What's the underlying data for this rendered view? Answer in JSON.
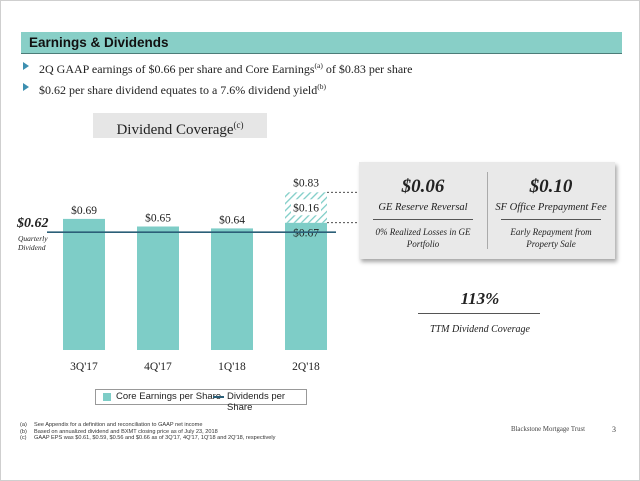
{
  "header": {
    "title": "Earnings & Dividends"
  },
  "bullets": [
    {
      "pre": "2Q GAAP earnings of $0.66 per share and Core Earnings",
      "sup": "(a)",
      "post": " of $0.83 per share"
    },
    {
      "pre": "$0.62 per share dividend equates to a 7.6% dividend yield",
      "sup": "(b)",
      "post": ""
    }
  ],
  "chart_title": {
    "text": "Dividend Coverage",
    "sup": "(c)"
  },
  "chart_data": {
    "type": "bar",
    "categories": [
      "3Q'17",
      "4Q'17",
      "1Q'18",
      "2Q'18"
    ],
    "series": [
      {
        "name": "Core Earnings per Share",
        "values": [
          0.69,
          0.65,
          0.64,
          0.67
        ],
        "labels": [
          "$0.69",
          "$0.65",
          "$0.64",
          "$0.67"
        ],
        "color": "#7ecdc7"
      }
    ],
    "stacked_addition": {
      "category": "2Q'18",
      "value": 0.16,
      "label": "$0.16",
      "total_label": "$0.83",
      "pattern": "diagonal-hatch",
      "color": "#7ecdc7"
    },
    "reference_line": {
      "name": "Dividends per Share",
      "value": 0.62,
      "label": "$0.62",
      "sublabel_line1": "Quarterly",
      "sublabel_line2": "Dividend",
      "color": "#2b5f78"
    },
    "legend": [
      "Core Earnings per Share",
      "Dividends per Share"
    ],
    "legend_position": "bottom-left",
    "grid": false
  },
  "callout": {
    "items": [
      {
        "value": "$0.06",
        "title": "GE Reserve Reversal",
        "detail": "0% Realized Losses in GE Portfolio"
      },
      {
        "value": "$0.10",
        "title": "SF Office Prepayment Fee",
        "detail": "Early Repayment from Property Sale"
      }
    ]
  },
  "coverage": {
    "value": "113%",
    "label": "TTM Dividend Coverage"
  },
  "footnotes": [
    {
      "mark": "(a)",
      "text": "See Appendix for a definition and reconciliation to GAAP net income"
    },
    {
      "mark": "(b)",
      "text": "Based on annualized dividend and BXMT closing price as of July 23, 2018"
    },
    {
      "mark": "(c)",
      "text": "GAAP EPS was $0.61, $0.59, $0.56 and $0.66 as of 3Q'17, 4Q'17, 1Q'18 and 2Q'18, respectively"
    }
  ],
  "footer": {
    "brand": "Blackstone Mortgage Trust",
    "page": "3"
  }
}
